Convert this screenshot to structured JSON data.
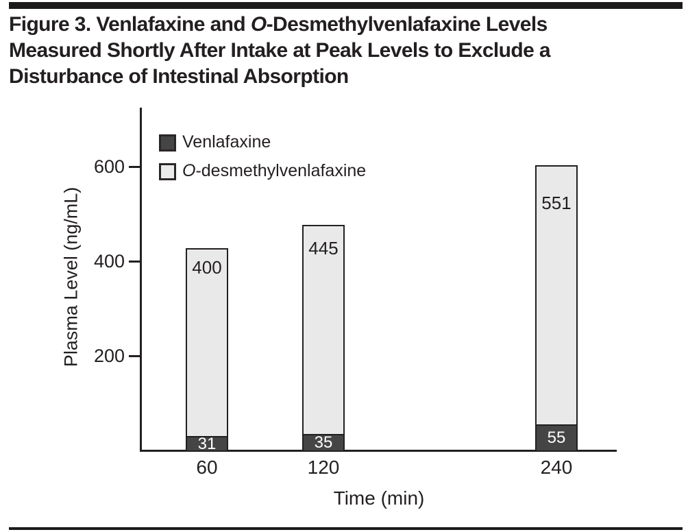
{
  "figure": {
    "title_lines_rich": [
      [
        {
          "t": "Figure 3. Venlafaxine and "
        },
        {
          "t": "O",
          "i": true
        },
        {
          "t": "-Desmethylvenlafaxine Levels"
        }
      ],
      [
        {
          "t": "Measured Shortly After Intake at Peak Levels to Exclude a"
        }
      ],
      [
        {
          "t": "Disturbance of Intestinal Absorption"
        }
      ]
    ]
  },
  "legend": {
    "items": [
      {
        "label_rich": [
          {
            "t": "Venlafaxine"
          }
        ],
        "swatch_color": "#454545"
      },
      {
        "label_rich": [
          {
            "t": "O",
            "i": true
          },
          {
            "t": "-desmethylvenlafaxine"
          }
        ],
        "swatch_color": "#ebebeb"
      }
    ]
  },
  "chart_data": {
    "type": "bar",
    "stacked": true,
    "title": "",
    "xlabel": "Time (min)",
    "ylabel": "Plasma Level (ng/mL)",
    "categories": [
      60,
      120,
      240
    ],
    "x_tick_labels": [
      "60",
      "120",
      "240"
    ],
    "x_axis_linear_in_time": true,
    "yticks": [
      200,
      400,
      600
    ],
    "ylim": [
      0,
      725
    ],
    "grid": false,
    "legend_position": "top-left-inside",
    "series": [
      {
        "name": "Venlafaxine",
        "color": "#454545",
        "label_color": "#ffffff",
        "values": [
          31,
          35,
          55
        ]
      },
      {
        "name": "O-desmethylvenlafaxine",
        "color": "#e9e9e9",
        "label_color": "#231f20",
        "values": [
          400,
          445,
          551
        ]
      }
    ],
    "stack_totals": [
      431,
      480,
      606
    ]
  },
  "colors": {
    "ink": "#231f20",
    "rule": "#1d1a1b",
    "dark_fill": "#454545",
    "light_fill": "#e9e9e9",
    "background": "#ffffff"
  }
}
